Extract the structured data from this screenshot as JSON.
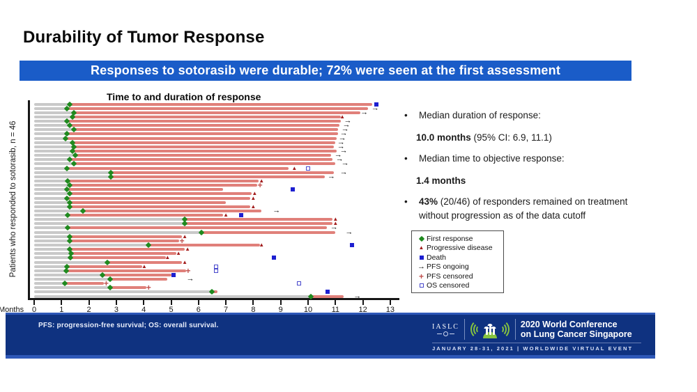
{
  "slide": {
    "title": "Durability of Tumor Response",
    "banner_text": "Responses to sotorasib were durable; 72% were seen at the first assessment"
  },
  "bullets": [
    {
      "lead": "Median duration of response:",
      "value_bold": "10.0 months",
      "value_rest": " (95% CI: 6.9, 11.1)"
    },
    {
      "lead": "Median time to objective response:",
      "value_bold": "1.4 months",
      "value_rest": ""
    },
    {
      "lead_bold": "43%",
      "lead_rest": " (20/46) of responders remained on treatment without progression as of the data cutoff"
    }
  ],
  "legend": {
    "items": [
      {
        "key": "first_response",
        "label": "First response"
      },
      {
        "key": "pd",
        "label": "Progressive disease"
      },
      {
        "key": "death",
        "label": "Death"
      },
      {
        "key": "pfs_ongoing",
        "label": "PFS ongoing"
      },
      {
        "key": "pfs_censored",
        "label": "PFS censored"
      },
      {
        "key": "os_censored",
        "label": "OS censored"
      }
    ]
  },
  "chart": {
    "title": "Time to and duration of response",
    "y_axis_label": "Patients who responded to sotorasib, n = 46",
    "x_axis_label": "Months",
    "chart_data": {
      "type": "swimmer",
      "x_unit": "months",
      "xlim": [
        0,
        13
      ],
      "x_ticks": [
        0,
        1,
        2,
        3,
        4,
        5,
        6,
        7,
        8,
        9,
        10,
        11,
        12,
        13
      ],
      "n_patients": 46,
      "row_format": "[first_response_month, response_bar_end_month, [event_type, event_month]...] ; bar is gray from 0 to first response, red (on treatment in response) to bar end",
      "marker_legend": {
        "first_response": "green diamond",
        "pd": "red triangle (progressive disease)",
        "death": "blue filled square",
        "pfs_ongoing": "black arrow",
        "pfs_censored": "red plus",
        "os_censored": "blue open square"
      },
      "rows": [
        [
          1.3,
          12.35,
          [
            "death",
            12.5
          ]
        ],
        [
          1.2,
          12.2,
          [
            "pfs_ongoing",
            12.45
          ]
        ],
        [
          1.45,
          11.9,
          [
            "pfs_ongoing",
            12.05
          ]
        ],
        [
          1.4,
          11.2,
          [
            "pd",
            11.25
          ]
        ],
        [
          1.2,
          11.2,
          [
            "pfs_ongoing",
            11.45
          ]
        ],
        [
          1.3,
          11.15,
          [
            "pfs_ongoing",
            11.4
          ]
        ],
        [
          1.45,
          11.1,
          [
            "pfs_ongoing",
            11.35
          ]
        ],
        [
          1.2,
          11.1,
          [
            "pfs_ongoing",
            11.3
          ]
        ],
        [
          1.15,
          11.05,
          [
            "pfs_ongoing",
            11.25
          ]
        ],
        [
          1.4,
          11.0,
          [
            "pfs_ongoing",
            11.2
          ]
        ],
        [
          1.45,
          10.95,
          [
            "pfs_ongoing",
            11.2
          ]
        ],
        [
          1.4,
          11.05,
          [
            "pfs_ongoing",
            11.3
          ]
        ],
        [
          1.5,
          10.85,
          [
            "pfs_ongoing",
            11.1
          ]
        ],
        [
          1.3,
          10.9,
          [
            "pfs_ongoing",
            11.15
          ]
        ],
        [
          1.45,
          11.0,
          [
            "pfs_ongoing",
            11.35
          ]
        ],
        [
          1.2,
          9.3,
          [
            "pd",
            9.5
          ],
          [
            "os_censored",
            10.0
          ]
        ],
        [
          2.8,
          10.95,
          [
            "pfs_ongoing",
            11.3
          ]
        ],
        [
          2.8,
          10.6,
          [
            "pfs_ongoing",
            10.85
          ]
        ],
        [
          1.22,
          8.2,
          [
            "pd",
            8.3
          ]
        ],
        [
          1.3,
          8.15,
          [
            "pfs_censored",
            8.25
          ]
        ],
        [
          1.2,
          6.9,
          [
            "death",
            9.45
          ]
        ],
        [
          1.3,
          7.95,
          [
            "pd",
            8.05
          ]
        ],
        [
          1.2,
          7.9,
          [
            "pd",
            8.0
          ]
        ],
        [
          1.3,
          7.0
        ],
        [
          1.29,
          7.9,
          [
            "pd",
            8.0
          ]
        ],
        [
          1.77,
          8.3,
          [
            "pfs_ongoing",
            8.85
          ]
        ],
        [
          1.22,
          6.9,
          [
            "pd",
            7.0
          ],
          [
            "death",
            7.55
          ]
        ],
        [
          5.5,
          10.9,
          [
            "pd",
            11.0
          ]
        ],
        [
          5.5,
          10.9,
          [
            "pd",
            11.0
          ]
        ],
        [
          1.22,
          10.7,
          [
            "pfs_ongoing",
            10.95
          ]
        ],
        [
          6.1,
          11.0,
          [
            "pfs_ongoing",
            11.5
          ]
        ],
        [
          1.29,
          5.4,
          [
            "pd",
            5.5
          ]
        ],
        [
          1.29,
          5.3,
          [
            "pfs_censored",
            5.4
          ]
        ],
        [
          4.17,
          8.25,
          [
            "pd",
            8.3
          ],
          [
            "death",
            11.6
          ]
        ],
        [
          1.29,
          5.5,
          [
            "pd",
            5.6
          ]
        ],
        [
          1.35,
          5.2,
          [
            "pd",
            5.27
          ]
        ],
        [
          1.33,
          4.8,
          [
            "pd",
            4.87
          ],
          [
            "death",
            8.75
          ]
        ],
        [
          2.67,
          5.4,
          [
            "pd",
            5.5
          ]
        ],
        [
          1.19,
          3.95,
          [
            "pd",
            4.02
          ],
          [
            "os_censored",
            6.65
          ]
        ],
        [
          1.17,
          5.55,
          [
            "pfs_censored",
            5.62
          ],
          [
            "os_censored",
            6.65
          ]
        ],
        [
          2.5,
          5.0,
          [
            "death",
            5.1
          ]
        ],
        [
          2.76,
          4.87,
          [
            "pfs_ongoing",
            5.7
          ]
        ],
        [
          1.13,
          2.55,
          [
            "pfs_censored",
            2.63
          ],
          [
            "os_censored",
            9.67
          ]
        ],
        [
          2.76,
          4.1,
          [
            "pfs_censored",
            4.18
          ]
        ],
        [
          6.5,
          6.7,
          [
            "death",
            10.7
          ]
        ],
        [
          10.1,
          11.3,
          [
            "pfs_ongoing",
            11.8
          ]
        ]
      ]
    }
  },
  "footer": {
    "abbrev": "PFS: progression-free survival; OS: overall survival.",
    "logo": {
      "org": "IASLC",
      "conf_line1": "2020 World Conference",
      "conf_line2": "on Lung Cancer Singapore",
      "event_line": "JANUARY 28-31, 2021 | WORLDWIDE VIRTUAL EVENT"
    }
  },
  "colors": {
    "banner_bg": "#1a5cc8",
    "footer_bg": "#0f3280",
    "footer_edge": "#2e58b8",
    "bar_pre_response": "#c9c9c9",
    "bar_response": "#e0807a",
    "first_response": "#1f8a1f",
    "progressive_disease": "#a21d1d",
    "death": "#1d1fd0",
    "pfs_censored": "#c0504d",
    "os_censored": "#4747cc",
    "logo_green": "#86c440"
  }
}
